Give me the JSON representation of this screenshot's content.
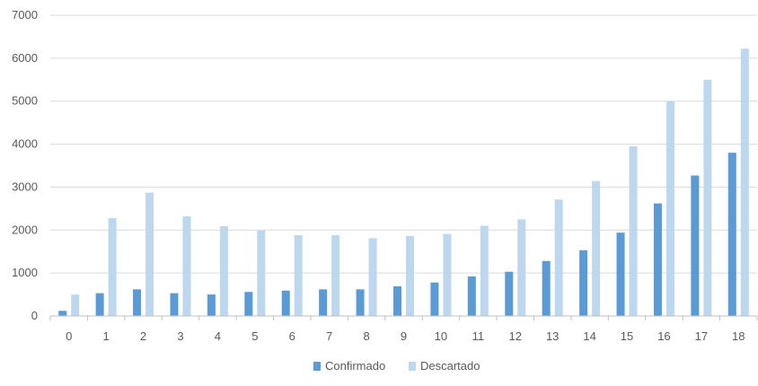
{
  "chart_data": {
    "type": "bar",
    "title": "",
    "xlabel": "",
    "ylabel": "",
    "ylim": [
      0,
      7000
    ],
    "yticks": [
      0,
      1000,
      2000,
      3000,
      4000,
      5000,
      6000,
      7000
    ],
    "grid": true,
    "legend_position": "bottom-center",
    "categories": [
      "0",
      "1",
      "2",
      "3",
      "4",
      "5",
      "6",
      "7",
      "8",
      "9",
      "10",
      "11",
      "12",
      "13",
      "14",
      "15",
      "16",
      "17",
      "18"
    ],
    "series": [
      {
        "name": "Confirmado",
        "color": "#5b9bd5",
        "values": [
          120,
          530,
          620,
          530,
          500,
          560,
          590,
          620,
          620,
          690,
          780,
          920,
          1030,
          1280,
          1530,
          1940,
          2620,
          3270,
          3800
        ]
      },
      {
        "name": "Descartado",
        "color": "#bdd7ee",
        "values": [
          500,
          2280,
          2870,
          2320,
          2090,
          1990,
          1880,
          1880,
          1810,
          1860,
          1910,
          2100,
          2250,
          2710,
          3140,
          3950,
          5000,
          5500,
          6220
        ]
      }
    ]
  }
}
